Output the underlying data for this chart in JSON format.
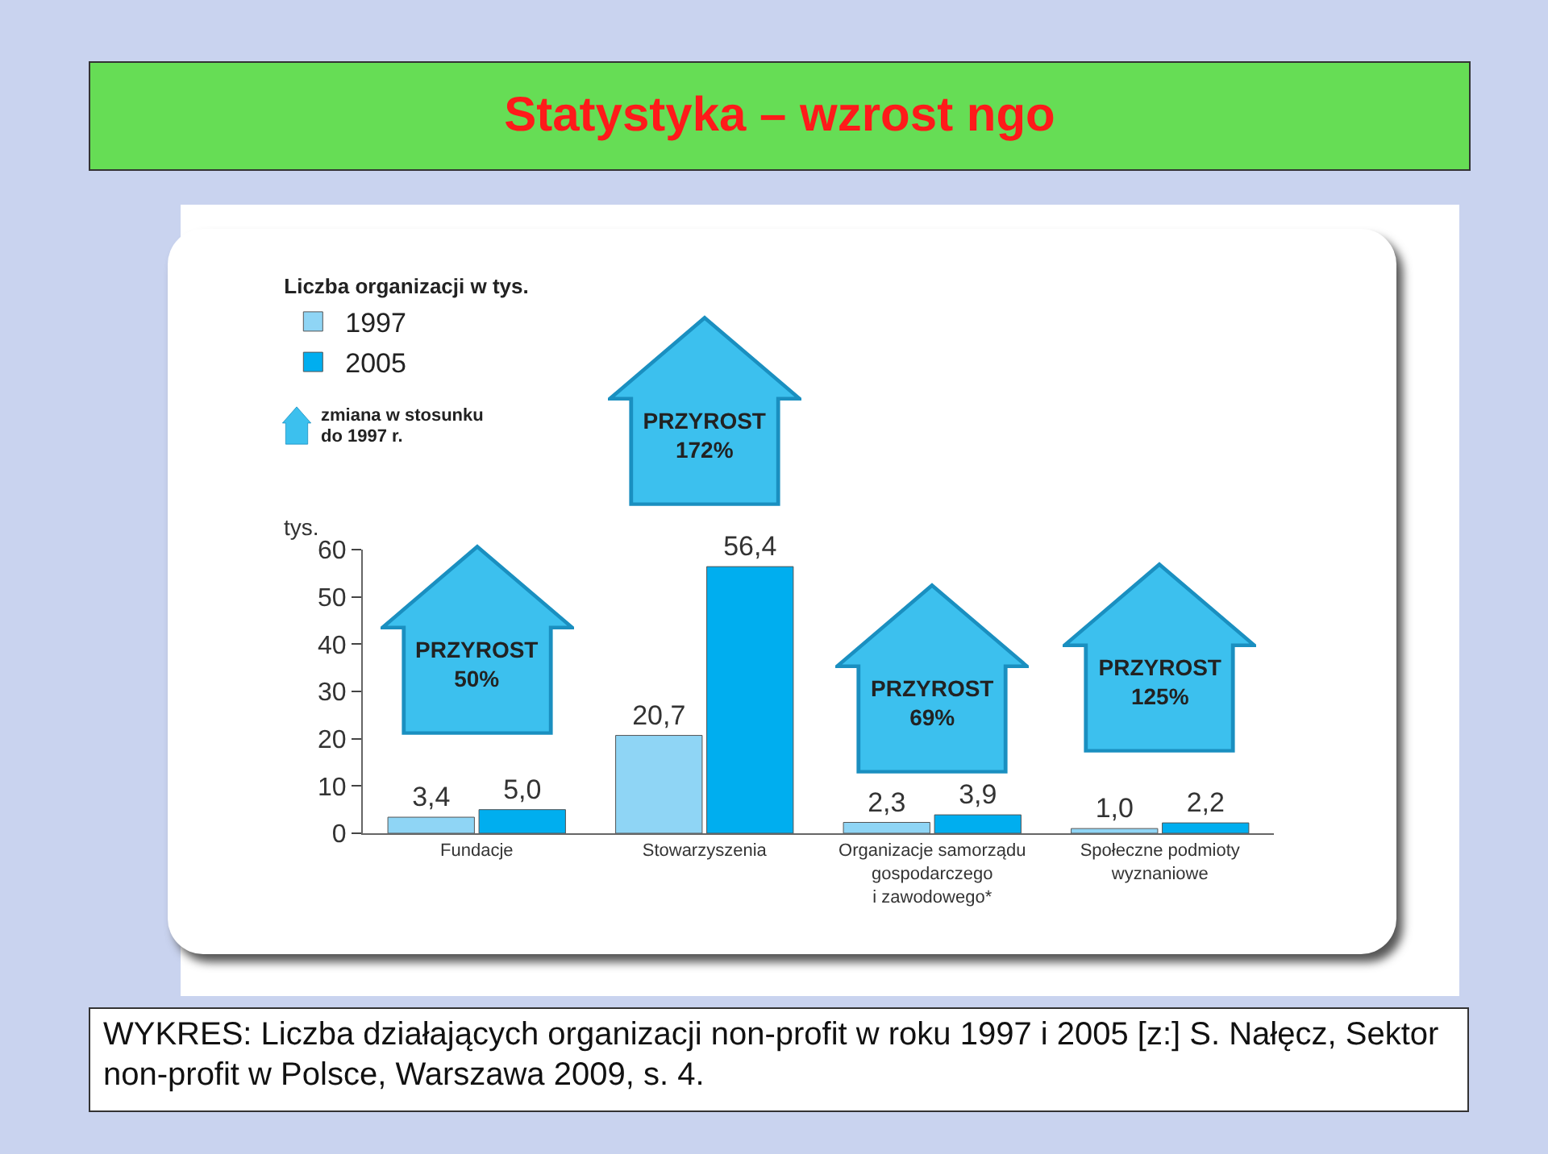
{
  "chart_data": {
    "type": "bar",
    "title": "Statystyka – wzrost ngo",
    "legend_title": "Liczba organizacji w tys.",
    "ylabel": "tys.",
    "categories": [
      "Fundacje",
      "Stowarzyszenia",
      "Organizacje samorządu\ngospodarczego\ni zawodowego*",
      "Społeczne podmioty\nwyznaniowe"
    ],
    "series": [
      {
        "name": "1997",
        "color": "#8fd5f5",
        "values": [
          3.4,
          20.7,
          2.3,
          1.0
        ],
        "value_labels": [
          "3,4",
          "20,7",
          "2,3",
          "1,0"
        ]
      },
      {
        "name": "2005",
        "color": "#00aeef",
        "values": [
          5.0,
          56.4,
          3.9,
          2.2
        ],
        "value_labels": [
          "5,0",
          "56,4",
          "3,9",
          "2,2"
        ]
      }
    ],
    "ylim": [
      0,
      60
    ],
    "yticks": [
      0,
      10,
      20,
      30,
      40,
      50,
      60
    ],
    "grid": false,
    "legend": "top left",
    "annotations": [
      "zmiana w stosunku\ndo 1997 r.",
      "WYKRES: Liczba działających organizacji non-profit w roku 1997 i 2005 [z:] S. Nałęcz, Sektor non-profit w Polsce, Warszawa 2009, s. 4.",
      "PRZYROST\n50%",
      "PRZYROST\n172%",
      "PRZYROST\n69%",
      "PRZYROST\n125%"
    ]
  }
}
